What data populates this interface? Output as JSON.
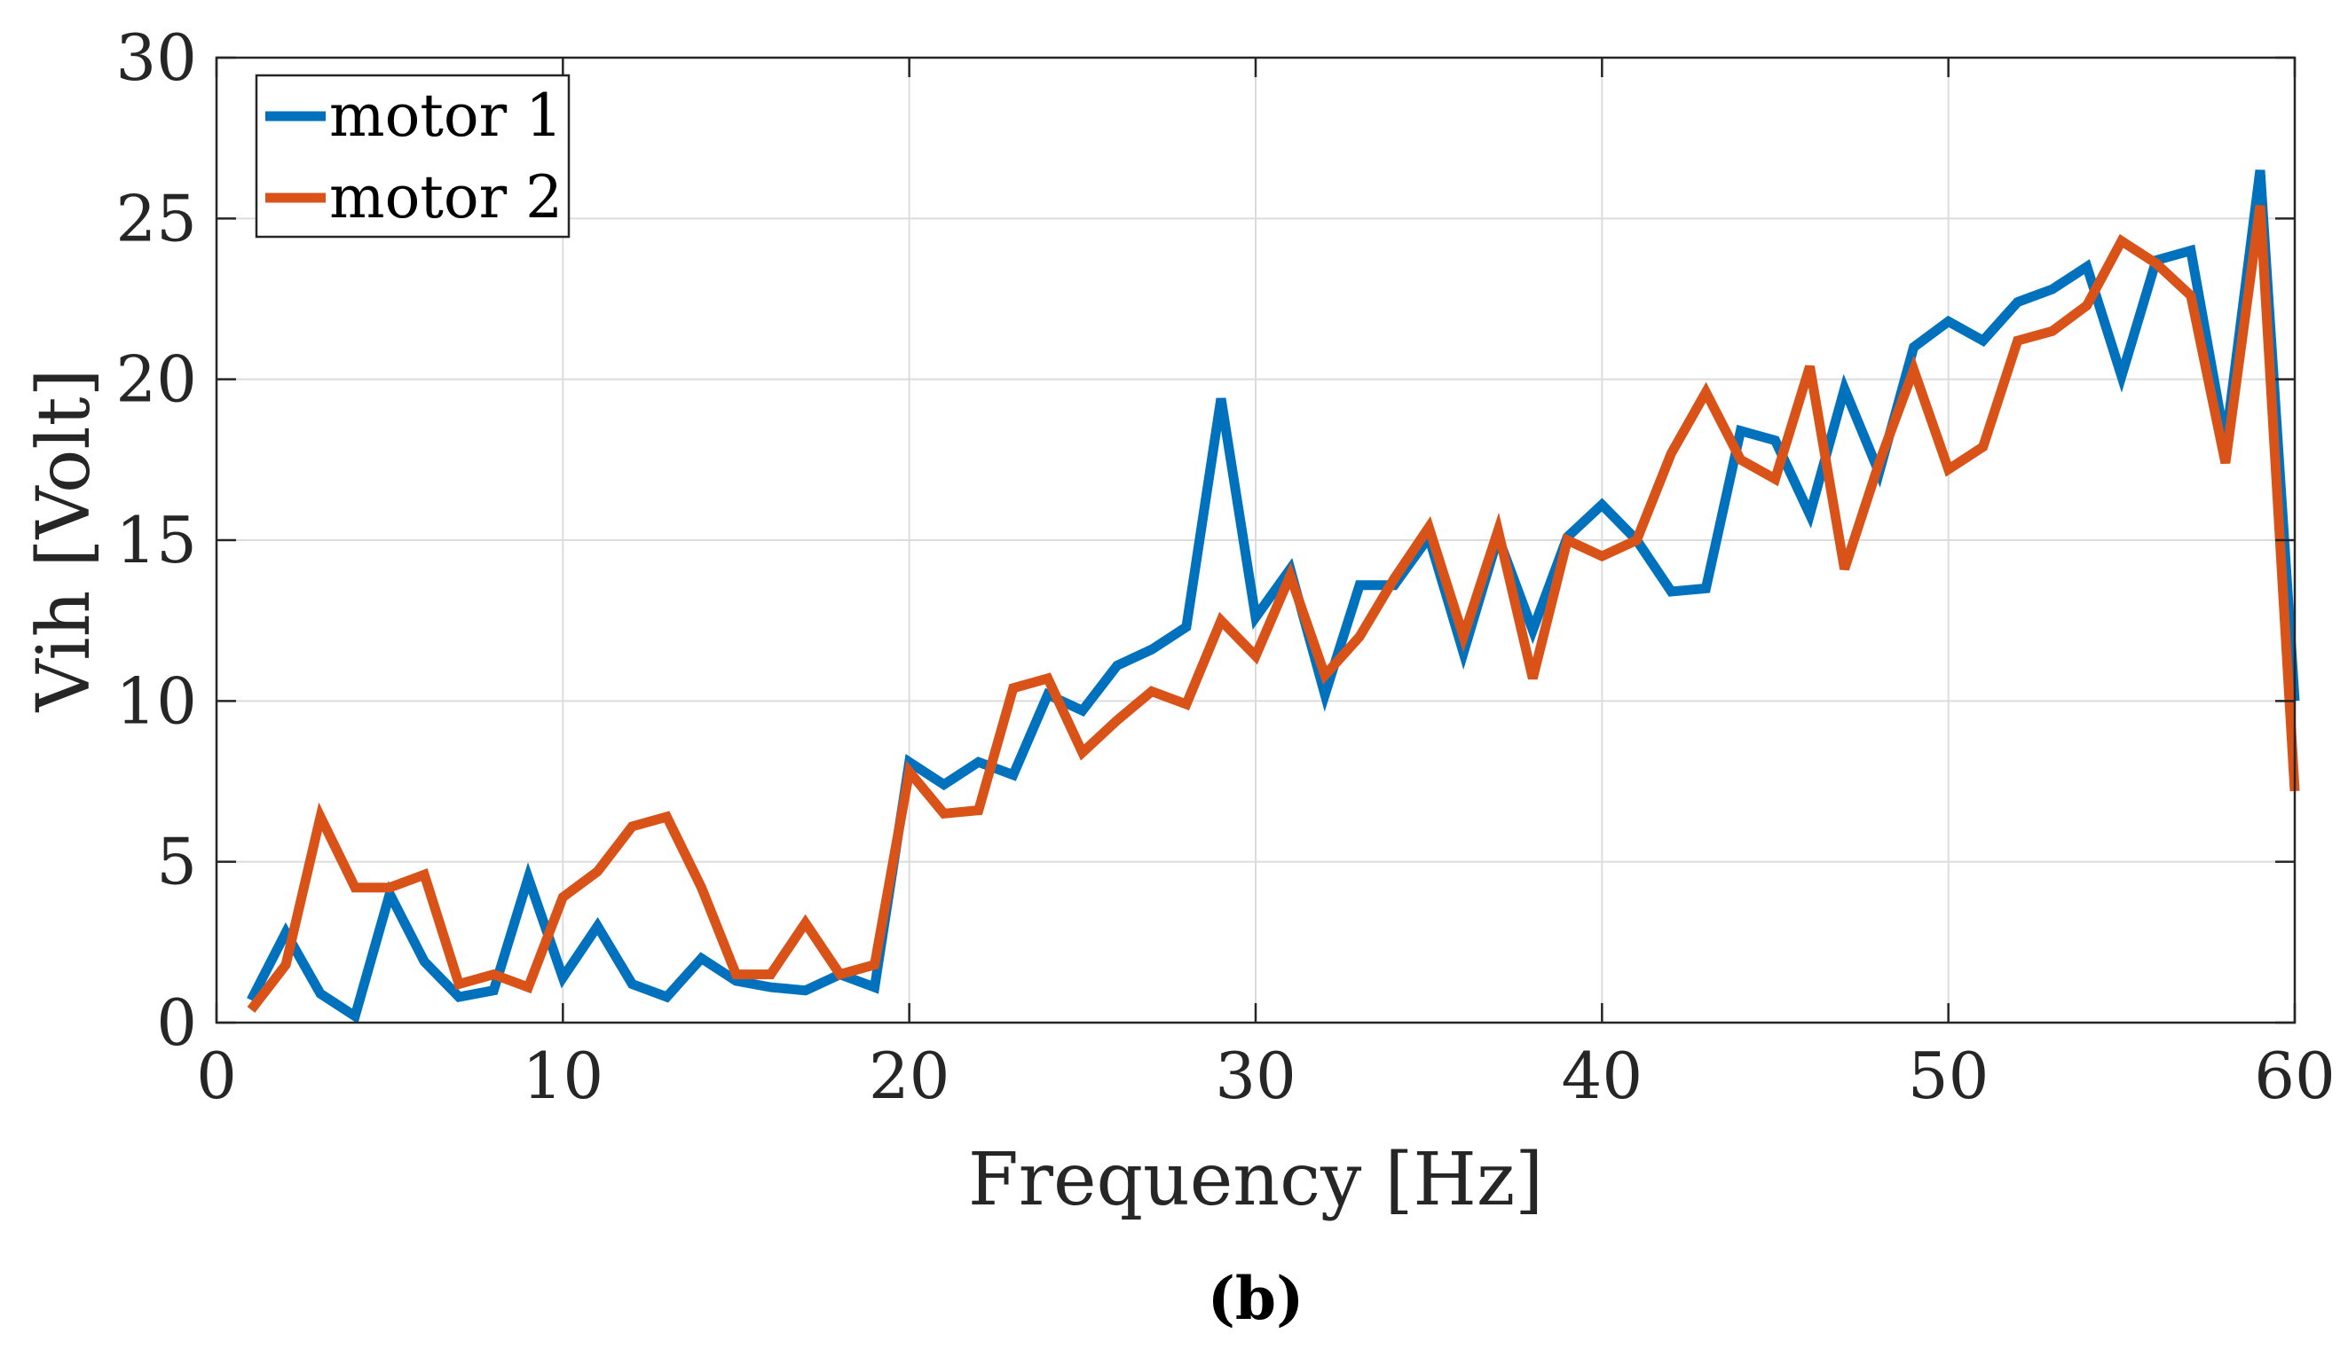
{
  "chart_data": {
    "type": "line",
    "xlabel": "Frequency [Hz]",
    "ylabel": "Vih [Volt]",
    "caption": "(b)",
    "xlim": [
      0,
      60
    ],
    "ylim": [
      0,
      30
    ],
    "xticks": [
      0,
      10,
      20,
      30,
      40,
      50,
      60
    ],
    "yticks": [
      0,
      5,
      10,
      15,
      20,
      25,
      30
    ],
    "grid": true,
    "legend_position": "top-left",
    "series": [
      {
        "name": "motor 1",
        "color": "#0072BD",
        "x": [
          1,
          2,
          3,
          4,
          5,
          6,
          7,
          8,
          9,
          10,
          11,
          12,
          13,
          14,
          15,
          16,
          17,
          18,
          19,
          20,
          21,
          22,
          23,
          24,
          25,
          26,
          27,
          28,
          29,
          30,
          31,
          32,
          33,
          34,
          35,
          36,
          37,
          38,
          39,
          40,
          41,
          42,
          43,
          44,
          45,
          46,
          47,
          48,
          49,
          50,
          51,
          52,
          53,
          54,
          55,
          56,
          57,
          58,
          59,
          60
        ],
        "values": [
          0.7,
          2.8,
          0.9,
          0.2,
          4.0,
          1.9,
          0.8,
          1.0,
          4.5,
          1.4,
          3.0,
          1.2,
          0.8,
          2.0,
          1.3,
          1.1,
          1.0,
          1.5,
          1.1,
          8.1,
          7.4,
          8.1,
          7.7,
          10.2,
          9.7,
          11.1,
          11.6,
          12.3,
          19.4,
          12.6,
          14.1,
          10.2,
          13.6,
          13.6,
          15.1,
          11.5,
          15.1,
          12.2,
          15.1,
          16.1,
          15.0,
          13.4,
          13.5,
          18.4,
          18.1,
          15.8,
          19.7,
          17.1,
          21.0,
          21.8,
          21.2,
          22.4,
          22.8,
          23.5,
          20.1,
          23.7,
          24.0,
          18.0,
          26.5,
          10.0
        ]
      },
      {
        "name": "motor 2",
        "color": "#D95319",
        "x": [
          1,
          2,
          3,
          4,
          5,
          6,
          7,
          8,
          9,
          10,
          11,
          12,
          13,
          14,
          15,
          16,
          17,
          18,
          19,
          20,
          21,
          22,
          23,
          24,
          25,
          26,
          27,
          28,
          29,
          30,
          31,
          32,
          33,
          34,
          35,
          36,
          37,
          38,
          39,
          40,
          41,
          42,
          43,
          44,
          45,
          46,
          47,
          48,
          49,
          50,
          51,
          52,
          53,
          54,
          55,
          56,
          57,
          58,
          59,
          60
        ],
        "values": [
          0.4,
          1.8,
          6.4,
          4.2,
          4.2,
          4.6,
          1.2,
          1.5,
          1.1,
          3.9,
          4.7,
          6.1,
          6.4,
          4.2,
          1.5,
          1.5,
          3.1,
          1.5,
          1.8,
          7.8,
          6.5,
          6.6,
          10.4,
          10.7,
          8.4,
          9.4,
          10.3,
          9.9,
          12.5,
          11.4,
          13.9,
          10.8,
          12.0,
          13.8,
          15.4,
          12.0,
          15.3,
          10.7,
          15.0,
          14.5,
          15.0,
          17.7,
          19.6,
          17.5,
          16.9,
          20.4,
          14.1,
          17.4,
          20.3,
          17.2,
          17.9,
          21.2,
          21.5,
          22.3,
          24.3,
          23.6,
          22.6,
          17.4,
          25.4,
          7.2
        ]
      }
    ]
  }
}
